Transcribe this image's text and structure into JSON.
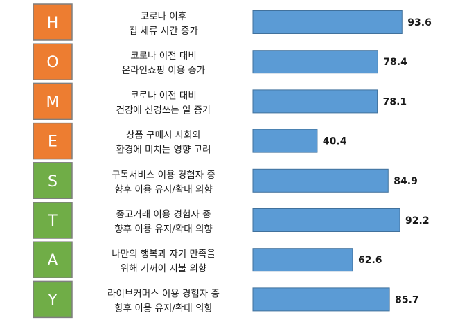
{
  "chart_data": {
    "type": "bar",
    "orientation": "horizontal",
    "title": "",
    "xlabel": "",
    "ylabel": "",
    "xlim": [
      0,
      100
    ],
    "grid": false,
    "legend": "none",
    "categories": [
      [
        "코로나 이후",
        "집 체류 시간 증가"
      ],
      [
        "코로나 이전 대비",
        "온라인쇼핑 이용 증가"
      ],
      [
        "코로나 이전 대비",
        "건강에 신경쓰는 일 증가"
      ],
      [
        "상품 구매시 사회와",
        "환경에 미치는 영향 고려"
      ],
      [
        "구독서비스 이용 경험자 중",
        "향후 이용 유지/확대 의향"
      ],
      [
        "중고거래 이용 경험자 중",
        "향후 이용 유지/확대 의향"
      ],
      [
        "나만의 행복과 자기 만족을",
        "위해 기꺼이 지불 의향"
      ],
      [
        "라이브커머스 이용 경험자 중",
        "향후 이용 유지/확대 의향"
      ]
    ],
    "values": [
      93.6,
      78.4,
      78.1,
      40.4,
      84.9,
      92.2,
      62.6,
      85.7
    ],
    "value_labels": [
      "93.6",
      "78.4",
      "78.1",
      "40.4",
      "84.9",
      "92.2",
      "62.6",
      "85.7"
    ],
    "letters": [
      "H",
      "O",
      "M",
      "E",
      "S",
      "T",
      "A",
      "Y"
    ],
    "letter_groups": [
      "home",
      "home",
      "home",
      "home",
      "stay",
      "stay",
      "stay",
      "stay"
    ],
    "colors": {
      "bar": "#5b9bd5",
      "bar_border": "#41719c",
      "home_tile": "#ed7d31",
      "stay_tile": "#70ad47",
      "tile_border": "#7f7f7f"
    }
  }
}
